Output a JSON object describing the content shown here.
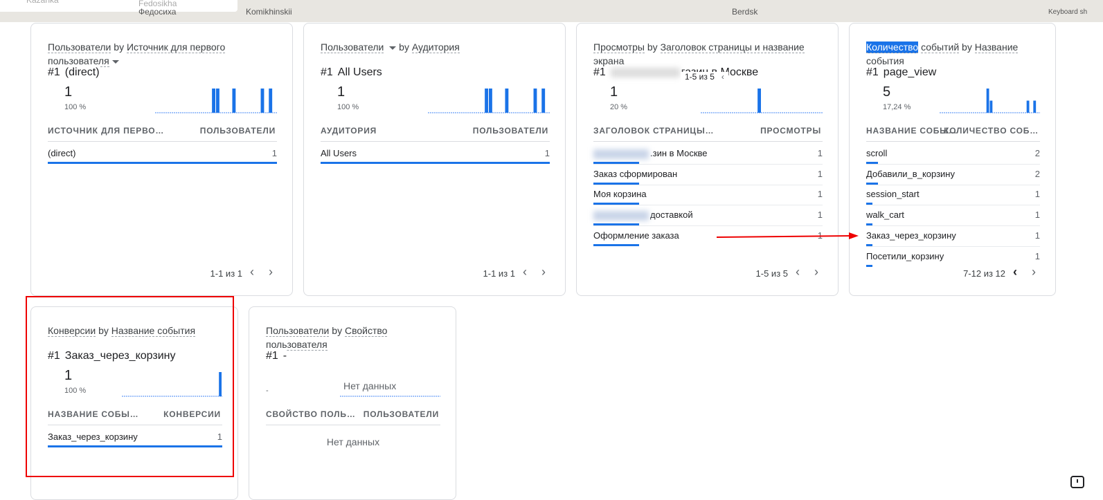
{
  "map": {
    "labels": [
      "Kazanka",
      "Fedosikha",
      "Федосиха",
      "Komikhinskii",
      "Berdsk",
      "Keyboard sh"
    ]
  },
  "cards": [
    {
      "title": {
        "metric": [
          "Пользователи"
        ],
        "by": "by",
        "dimension": "Источник для первого пользователя",
        "dropdown": "dimension"
      },
      "top": {
        "rank": "#1",
        "label": "(direct)",
        "value": 1,
        "share": {
          "value": 100,
          "label": "100 %"
        }
      },
      "minutes": [
        0,
        0,
        0,
        0,
        0,
        0,
        0,
        0,
        0,
        0,
        0,
        0,
        0,
        0,
        1,
        1,
        0,
        0,
        0,
        1,
        0,
        0,
        0,
        0,
        0,
        0,
        1,
        0,
        1,
        0
      ],
      "columns": [
        "ИСТОЧНИК ДЛЯ ПЕРВО…",
        "ПОЛЬЗОВАТЕЛИ"
      ],
      "rows": [
        {
          "label": "(direct)",
          "value": 1
        }
      ],
      "pagination": "1-1 из 1"
    },
    {
      "title": {
        "metric": [
          "Пользователи"
        ],
        "by": "by",
        "dimension": "Аудитория",
        "dropdown": "metric"
      },
      "top": {
        "rank": "#1",
        "label": "All Users",
        "value": 1,
        "share": {
          "value": 100,
          "label": "100 %"
        }
      },
      "minutes": [
        0,
        0,
        0,
        0,
        0,
        0,
        0,
        0,
        0,
        0,
        0,
        0,
        0,
        0,
        1,
        1,
        0,
        0,
        0,
        1,
        0,
        0,
        0,
        0,
        0,
        0,
        1,
        0,
        1,
        0
      ],
      "columns": [
        "АУДИТОРИЯ",
        "ПОЛЬЗОВАТЕЛИ"
      ],
      "rows": [
        {
          "label": "All Users",
          "value": 1
        }
      ],
      "pagination": "1-1 из 1"
    },
    {
      "title": {
        "metric": [
          "Просмотры"
        ],
        "by": "by",
        "dimension": "Заголовок страницы и название экрана"
      },
      "top": {
        "rank": "#1",
        "label": "газин в Москве",
        "blur": true,
        "value": 1,
        "share": {
          "value": 20,
          "label": "20 %"
        }
      },
      "overlay_pagination": "1-5 из 5",
      "minutes": [
        0,
        0,
        0,
        0,
        0,
        0,
        0,
        0,
        0,
        0,
        0,
        0,
        0,
        0,
        1,
        0,
        0,
        0,
        0,
        0,
        0,
        0,
        0,
        0,
        0,
        0,
        0,
        0,
        0,
        0
      ],
      "columns": [
        "ЗАГОЛОВОК СТРАНИЦЫ…",
        "ПРОСМОТРЫ"
      ],
      "rows": [
        {
          "label": ".зин в Москве",
          "blur": true,
          "value": 1
        },
        {
          "label": "Заказ сформирован",
          "value": 1
        },
        {
          "label": "Моя корзина",
          "value": 1
        },
        {
          "label": "доставкой",
          "blur": true,
          "value": 1
        },
        {
          "label": "Оформление заказа",
          "value": 1
        }
      ],
      "pagination": "1-5 из 5"
    },
    {
      "title": {
        "metric": [
          "Количество",
          "событий"
        ],
        "selected_part": 0,
        "by": "by",
        "dimension": "Название события"
      },
      "top": {
        "rank": "#1",
        "label": "page_view",
        "value": 5,
        "share": {
          "value": 17.24,
          "label": "17,24 %"
        }
      },
      "minutes": [
        0,
        0,
        0,
        0,
        0,
        0,
        0,
        0,
        0,
        0,
        0,
        0,
        0,
        0,
        2,
        1,
        0,
        0,
        0,
        0,
        0,
        0,
        0,
        0,
        0,
        0,
        1,
        0,
        1,
        0
      ],
      "columns": [
        "НАЗВАНИЕ СОБЫ…",
        "КОЛИЧЕСТВО СОБ…"
      ],
      "rows": [
        {
          "label": "scroll",
          "value": 2
        },
        {
          "label": "Добавили_в_корзину",
          "value": 2
        },
        {
          "label": "session_start",
          "value": 1
        },
        {
          "label": "walk_cart",
          "value": 1
        },
        {
          "label": "Заказ_через_корзину",
          "value": 1
        },
        {
          "label": "Посетили_корзину",
          "value": 1
        }
      ],
      "pagination": "7-12 из 12",
      "prev_active": true
    },
    {
      "title": {
        "metric": [
          "Конверсии"
        ],
        "by": "by",
        "dimension": "Название события"
      },
      "top": {
        "rank": "#1",
        "label": "Заказ_через_корзину",
        "value": 1,
        "share": {
          "value": 100,
          "label": "100 %"
        }
      },
      "minutes": [
        0,
        0,
        0,
        0,
        0,
        0,
        0,
        0,
        0,
        0,
        0,
        0,
        0,
        0,
        0,
        0,
        0,
        0,
        0,
        0,
        0,
        0,
        0,
        0,
        0,
        0,
        0,
        0,
        0,
        1
      ],
      "columns": [
        "НАЗВАНИЕ СОБЫ…",
        "КОНВЕРСИИ"
      ],
      "rows": [
        {
          "label": "Заказ_через_корзину",
          "value": 1
        }
      ],
      "highlighted": true
    },
    {
      "title": {
        "metric": [
          "Пользователи"
        ],
        "by": "by",
        "dimension": "Свойство пользователя"
      },
      "top": {
        "rank": "#1",
        "label": "-",
        "share_label": "-",
        "empty": "Нет данных"
      },
      "columns": [
        "СВОЙСТВО ПОЛЬ…",
        "ПОЛЬЗОВАТЕЛИ"
      ],
      "rows": [],
      "empty": "Нет данных"
    }
  ]
}
